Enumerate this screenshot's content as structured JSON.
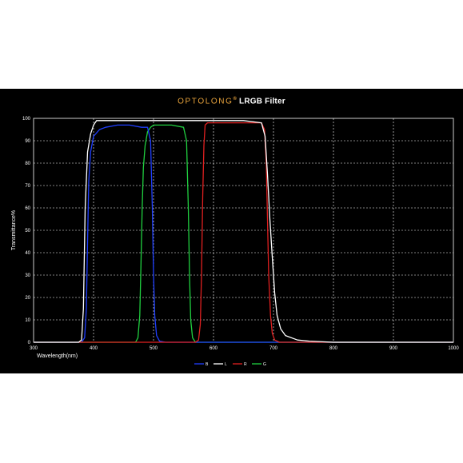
{
  "chart_data": {
    "type": "line",
    "title_brand": "OPTOLONG",
    "title_reg": "®",
    "title_rest": " LRGB Filter",
    "xlabel": "Wavelength(nm)",
    "ylabel": "Transmittance%",
    "xlim": [
      300,
      1000
    ],
    "ylim": [
      0,
      100
    ],
    "xticks": [
      "300",
      "400",
      "500",
      "600",
      "700",
      "800",
      "900",
      "1000"
    ],
    "yticks": [
      "0",
      "10",
      "20",
      "30",
      "40",
      "50",
      "60",
      "70",
      "80",
      "90",
      "100"
    ],
    "grid": true,
    "legend_position": "bottom",
    "series": [
      {
        "name": "B",
        "color": "#1f3fff",
        "points": [
          [
            300,
            0
          ],
          [
            380,
            0
          ],
          [
            385,
            2
          ],
          [
            388,
            15
          ],
          [
            390,
            45
          ],
          [
            392,
            72
          ],
          [
            395,
            85
          ],
          [
            400,
            92
          ],
          [
            410,
            95
          ],
          [
            420,
            96
          ],
          [
            440,
            97
          ],
          [
            460,
            97
          ],
          [
            480,
            96
          ],
          [
            490,
            96
          ],
          [
            495,
            90
          ],
          [
            498,
            60
          ],
          [
            500,
            30
          ],
          [
            502,
            12
          ],
          [
            505,
            3
          ],
          [
            510,
            0.5
          ],
          [
            520,
            0
          ],
          [
            1000,
            0
          ]
        ]
      },
      {
        "name": "L",
        "color": "#ffffff",
        "points": [
          [
            300,
            0
          ],
          [
            375,
            0
          ],
          [
            380,
            1
          ],
          [
            383,
            15
          ],
          [
            386,
            60
          ],
          [
            390,
            85
          ],
          [
            395,
            93
          ],
          [
            400,
            97
          ],
          [
            405,
            99
          ],
          [
            450,
            99
          ],
          [
            500,
            99
          ],
          [
            550,
            99
          ],
          [
            600,
            99
          ],
          [
            650,
            99
          ],
          [
            680,
            98
          ],
          [
            686,
            92
          ],
          [
            690,
            75
          ],
          [
            694,
            55
          ],
          [
            698,
            38
          ],
          [
            702,
            22
          ],
          [
            706,
            12
          ],
          [
            712,
            6
          ],
          [
            720,
            3
          ],
          [
            740,
            1
          ],
          [
            760,
            0.5
          ],
          [
            800,
            0
          ],
          [
            1000,
            0
          ]
        ]
      },
      {
        "name": "R",
        "color": "#e02020",
        "points": [
          [
            300,
            0
          ],
          [
            570,
            0
          ],
          [
            575,
            1
          ],
          [
            578,
            8
          ],
          [
            580,
            30
          ],
          [
            582,
            65
          ],
          [
            584,
            88
          ],
          [
            586,
            97
          ],
          [
            590,
            98
          ],
          [
            620,
            98
          ],
          [
            650,
            98
          ],
          [
            680,
            98
          ],
          [
            685,
            95
          ],
          [
            688,
            80
          ],
          [
            690,
            55
          ],
          [
            692,
            30
          ],
          [
            695,
            12
          ],
          [
            698,
            4
          ],
          [
            702,
            1
          ],
          [
            710,
            0
          ],
          [
            1000,
            0
          ]
        ]
      },
      {
        "name": "G",
        "color": "#20d040",
        "points": [
          [
            300,
            0
          ],
          [
            470,
            0
          ],
          [
            474,
            2
          ],
          [
            477,
            12
          ],
          [
            479,
            35
          ],
          [
            481,
            60
          ],
          [
            483,
            78
          ],
          [
            486,
            88
          ],
          [
            490,
            94
          ],
          [
            495,
            96
          ],
          [
            500,
            97
          ],
          [
            530,
            97
          ],
          [
            550,
            96
          ],
          [
            555,
            90
          ],
          [
            558,
            60
          ],
          [
            560,
            30
          ],
          [
            562,
            10
          ],
          [
            565,
            2
          ],
          [
            570,
            0
          ],
          [
            1000,
            0
          ]
        ]
      }
    ]
  }
}
